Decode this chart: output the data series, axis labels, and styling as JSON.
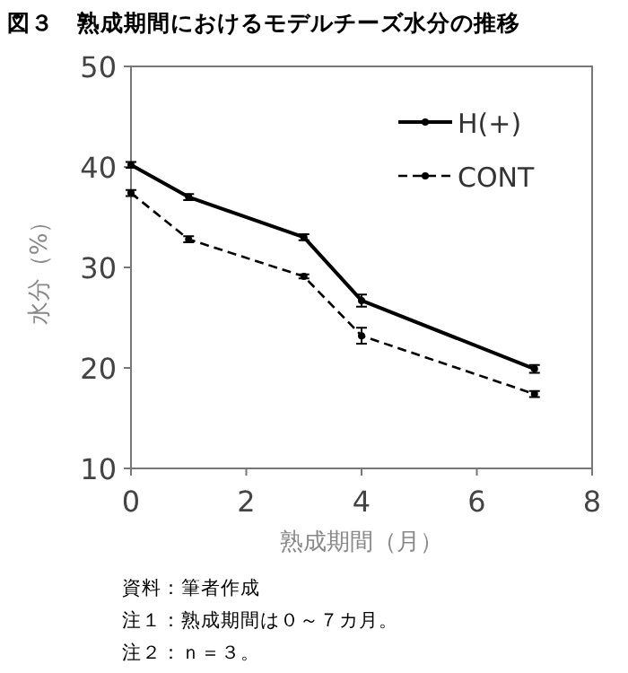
{
  "chart_data": {
    "type": "line",
    "title": "図３　熟成期間におけるモデルチーズ水分の推移",
    "xlabel": "熟成期間（月）",
    "ylabel": "水分（%）",
    "x": [
      0,
      1,
      3,
      4,
      7
    ],
    "series": [
      {
        "name": "H(+)",
        "color": "#000000",
        "values": [
          40.2,
          37.0,
          33.0,
          26.7,
          19.9
        ],
        "errors": [
          0.3,
          0.3,
          0.3,
          0.6,
          0.4
        ],
        "line_style": "solid"
      },
      {
        "name": "CONT",
        "color": "#000000",
        "values": [
          37.4,
          32.8,
          29.1,
          23.2,
          17.4
        ],
        "errors": [
          0.3,
          0.3,
          0.2,
          0.8,
          0.3
        ],
        "line_style": "dashed"
      }
    ],
    "xlim": [
      0,
      8
    ],
    "xticks": [
      0,
      2,
      4,
      6,
      8
    ],
    "ylim": [
      10,
      50
    ],
    "yticks": [
      10,
      20,
      30,
      40,
      50
    ],
    "grid": false,
    "legend": "top right",
    "marker": "circle",
    "annotations": [
      "資料：筆者作成",
      "注１：熟成期間は０～７カ月。",
      "注２：ｎ＝３。"
    ]
  }
}
